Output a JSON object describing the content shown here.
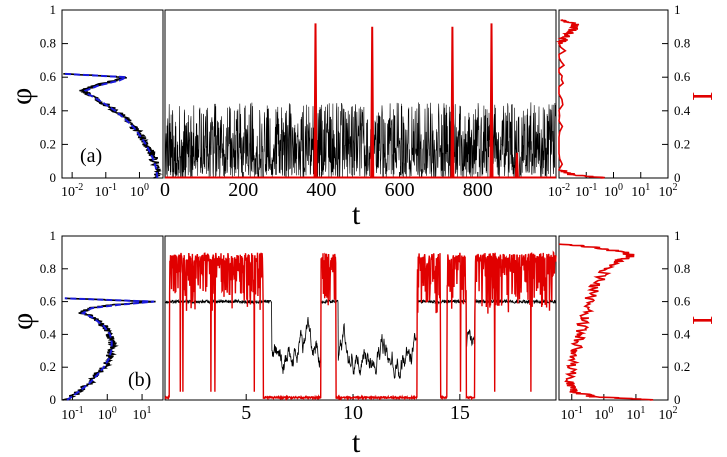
{
  "colors": {
    "phi_trace": "#000000",
    "I_trace": "#e00000",
    "hist_fit": "#1a1adc",
    "axes": "#000000"
  },
  "chart_data": [
    {
      "panel": "a",
      "label": "(a)",
      "layout": "three-panel: left histogram P(phi) log-x, center time series, right histogram P(I) log-x",
      "left_hist": {
        "type": "line",
        "x_scale": "log",
        "xlim": [
          0.005,
          5
        ],
        "x_ticks": [
          "10-2",
          "10-1",
          "100"
        ],
        "ylabel": "φ",
        "ylim": [
          0,
          1
        ],
        "y_ticks": [
          "0",
          "0.2",
          "0.4",
          "0.6",
          "0.8",
          "1"
        ],
        "series": [
          {
            "color": "#000000",
            "phi": [
              0.0,
              0.05,
              0.1,
              0.15,
              0.2,
              0.25,
              0.3,
              0.35,
              0.4,
              0.45,
              0.5,
              0.52,
              0.55,
              0.58,
              0.6,
              0.62
            ],
            "P": [
              3.5,
              3.3,
              2.8,
              2.2,
              1.6,
              1.1,
              0.7,
              0.4,
              0.2,
              0.08,
              0.03,
              0.02,
              0.05,
              0.2,
              0.35,
              0.006
            ]
          },
          {
            "color": "#1a1adc",
            "phi": [
              0.0,
              0.05,
              0.1,
              0.15,
              0.2,
              0.25,
              0.3,
              0.35,
              0.4,
              0.45,
              0.5,
              0.52,
              0.55,
              0.58,
              0.6,
              0.62
            ],
            "P": [
              3.4,
              3.2,
              2.7,
              2.1,
              1.55,
              1.05,
              0.68,
              0.38,
              0.19,
              0.08,
              0.03,
              0.025,
              0.06,
              0.25,
              0.4,
              0.006
            ]
          }
        ]
      },
      "timeseries": {
        "type": "line",
        "xlabel": "t",
        "xlim": [
          0,
          1000
        ],
        "x_ticks": [
          "0",
          "200",
          "400",
          "600",
          "800"
        ],
        "ylim": [
          0,
          1
        ],
        "phi_series": {
          "color": "#000000",
          "description": "noisy fluctuation between 0 and ~0.45",
          "range": [
            0,
            0.45
          ]
        },
        "I_series": {
          "color": "#e00000",
          "baseline": 0.0,
          "spike_times": [
            385,
            530,
            735,
            835,
            900
          ],
          "spike_heights": [
            0.92,
            0.9,
            0.9,
            0.92,
            0.15
          ]
        }
      },
      "right_hist": {
        "type": "line",
        "x_scale": "log",
        "xlim": [
          0.01,
          100
        ],
        "x_ticks": [
          "10-2",
          "10-1",
          "100",
          "101",
          "102"
        ],
        "ylabel": "I",
        "ylim": [
          0,
          1
        ],
        "y_ticks": [
          "0",
          "0.2",
          "0.4",
          "0.6",
          "0.8",
          "1"
        ],
        "series": [
          {
            "color": "#e00000",
            "I": [
              0.0,
              0.02,
              0.05,
              0.5,
              0.8,
              0.85,
              0.88,
              0.9,
              0.92,
              0.94
            ],
            "P": [
              0.5,
              0.03,
              0.01,
              0.01,
              0.012,
              0.02,
              0.03,
              0.04,
              0.035,
              0.012
            ]
          }
        ]
      }
    },
    {
      "panel": "b",
      "label": "(b)",
      "layout": "three-panel: left histogram P(phi) log-x, center time series, right histogram P(I) log-x",
      "left_hist": {
        "type": "line",
        "x_scale": "log",
        "xlim": [
          0.05,
          40
        ],
        "x_ticks": [
          "10-1",
          "100",
          "101"
        ],
        "ylabel": "φ",
        "ylim": [
          0,
          1
        ],
        "y_ticks": [
          "0",
          "0.2",
          "0.4",
          "0.6",
          "0.8",
          "1"
        ],
        "series": [
          {
            "color": "#000000",
            "phi": [
              0.0,
              0.05,
              0.1,
              0.15,
              0.2,
              0.25,
              0.3,
              0.35,
              0.4,
              0.45,
              0.5,
              0.53,
              0.56,
              0.58,
              0.6,
              0.62
            ],
            "P": [
              0.07,
              0.15,
              0.3,
              0.5,
              0.8,
              1.1,
              1.3,
              1.35,
              1.2,
              0.8,
              0.4,
              0.2,
              0.3,
              1.5,
              20,
              0.06
            ]
          },
          {
            "color": "#1a1adc",
            "phi": [
              0.0,
              0.05,
              0.1,
              0.15,
              0.2,
              0.25,
              0.3,
              0.35,
              0.4,
              0.45,
              0.5,
              0.53,
              0.56,
              0.58,
              0.6,
              0.62
            ],
            "P": [
              0.07,
              0.15,
              0.3,
              0.5,
              0.8,
              1.1,
              1.3,
              1.35,
              1.2,
              0.8,
              0.4,
              0.2,
              0.35,
              2.0,
              22,
              0.06
            ]
          }
        ]
      },
      "timeseries": {
        "type": "line",
        "xlabel": "t",
        "xlim": [
          1.2,
          19.5
        ],
        "x_ticks": [
          "5",
          "10",
          "15"
        ],
        "ylim": [
          0,
          1
        ],
        "phi_series": {
          "color": "#000000",
          "plateau": 0.6,
          "plateau_intervals": [
            [
              1.2,
              6.2
            ],
            [
              8.5,
              9.3
            ],
            [
              13.0,
              15.3
            ],
            [
              15.7,
              19.5
            ]
          ],
          "low_state_range": [
            0.05,
            0.55
          ]
        },
        "I_series": {
          "color": "#e00000",
          "high_value": 0.88,
          "low_value": 0.01,
          "high_intervals": [
            [
              1.4,
              5.8
            ],
            [
              8.5,
              9.2
            ],
            [
              13.0,
              14.1
            ],
            [
              14.4,
              15.3
            ],
            [
              15.7,
              19.5
            ]
          ]
        }
      },
      "right_hist": {
        "type": "line",
        "x_scale": "log",
        "xlim": [
          0.04,
          100
        ],
        "x_ticks": [
          "10-1",
          "100",
          "101",
          "102"
        ],
        "ylabel": "I",
        "ylim": [
          0,
          1
        ],
        "y_ticks": [
          "0",
          "0.2",
          "0.4",
          "0.6",
          "0.8",
          "1"
        ],
        "series": [
          {
            "color": "#e00000",
            "I": [
              0.0,
              0.02,
              0.05,
              0.1,
              0.2,
              0.3,
              0.4,
              0.5,
              0.6,
              0.7,
              0.8,
              0.85,
              0.88,
              0.9,
              0.93,
              0.95
            ],
            "P": [
              40,
              0.5,
              0.12,
              0.09,
              0.1,
              0.13,
              0.18,
              0.25,
              0.35,
              0.55,
              1.2,
              2.8,
              7,
              4,
              0.6,
              0.05
            ]
          }
        ]
      }
    }
  ]
}
